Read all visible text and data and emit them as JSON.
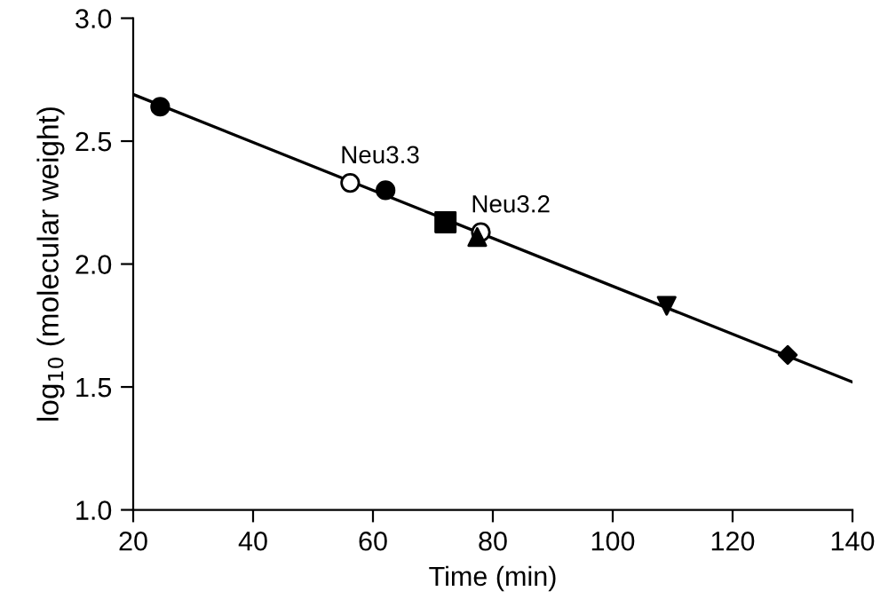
{
  "chart_data": {
    "type": "scatter",
    "xlabel": "Time (min)",
    "ylabel": "log$_{10}$ (molecular weight)",
    "xlim": [
      20,
      140
    ],
    "ylim": [
      1.0,
      3.0
    ],
    "xticks": [
      20,
      40,
      60,
      80,
      100,
      120,
      140
    ],
    "yticks": [
      {
        "value": 1.0,
        "label": "1.0"
      },
      {
        "value": 1.5,
        "label": "1.5"
      },
      {
        "value": 2.0,
        "label": "2.0"
      },
      {
        "value": 2.5,
        "label": "2.5"
      },
      {
        "value": 3.0,
        "label": "3.0"
      }
    ],
    "grid": false,
    "legend": false,
    "series": [
      {
        "type": "line",
        "color": "#000000",
        "x": [
          20,
          140
        ],
        "values": [
          2.69,
          1.52
        ],
        "marker": "none",
        "line_style": "solid"
      },
      {
        "color": "#000000",
        "x": [
          24.5,
          62.1
        ],
        "values": [
          2.64,
          2.3
        ],
        "marker": "circle"
      },
      {
        "color": "#ffffff",
        "x": [
          56.2,
          78.0
        ],
        "values": [
          2.33,
          2.13
        ],
        "marker": "circle"
      },
      {
        "color": "#000000",
        "x": [
          72.1
        ],
        "values": [
          2.17
        ],
        "marker": "square"
      },
      {
        "color": "#000000",
        "x": [
          77.4
        ],
        "values": [
          2.11
        ],
        "marker": "triangle"
      },
      {
        "color": "#000000",
        "x": [
          109.0
        ],
        "values": [
          1.83
        ],
        "marker": "triangle_down"
      },
      {
        "color": "#000000",
        "x": [
          129.2
        ],
        "values": [
          1.63
        ],
        "marker": "diamond"
      }
    ],
    "annotations": [
      {
        "text": "Neu3.3",
        "x": 56.2,
        "y": 2.33
      },
      {
        "text": "Neu3.2",
        "x": 78.0,
        "y": 2.13
      }
    ]
  }
}
